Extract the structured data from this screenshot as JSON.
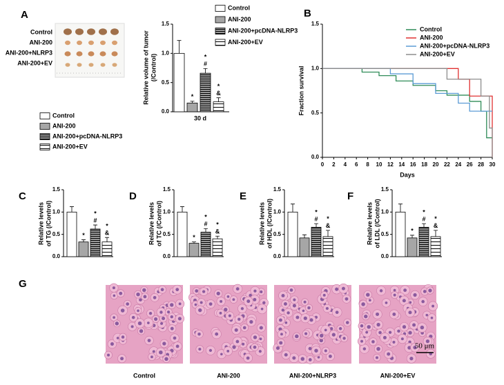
{
  "photo": {
    "label": "A",
    "rows": [
      "Control",
      "ANI-200",
      "ANI-200+NLRP3",
      "ANI-200+EV"
    ]
  },
  "chart_data": [
    {
      "type": "bar",
      "ylabel": [
        "Relative volume of tumor",
        "(/Control)"
      ],
      "categories": [
        "30 d"
      ],
      "ylim": [
        0,
        1.5
      ],
      "yticks": [
        {
          "value": 0,
          "label": "0.0"
        },
        0.5,
        {
          "value": 1,
          "label": "1.0"
        },
        1.5
      ],
      "series": [
        {
          "name": "Control",
          "color": "#ffffff",
          "values": [
            1.0
          ],
          "errors": [
            0.22
          ],
          "annotations": [
            []
          ]
        },
        {
          "name": "ANI-200",
          "color": "#a6a6a6",
          "values": [
            0.15
          ],
          "errors": [
            0.03
          ],
          "annotations": [
            [
              "*"
            ]
          ]
        },
        {
          "name": "ANI-200+pcDNA-NLRP3",
          "color": "#9a9a9a",
          "hatch": "dense",
          "values": [
            0.66
          ],
          "errors": [
            0.08
          ],
          "annotations": [
            [
              "*",
              "#"
            ]
          ]
        },
        {
          "name": "ANI-200+EV",
          "color": "#ffffff",
          "hatch": "wide",
          "values": [
            0.17
          ],
          "errors": [
            0.07
          ],
          "annotations": [
            [
              "*",
              "&"
            ]
          ]
        }
      ]
    },
    {
      "type": "line",
      "label": "B",
      "step": true,
      "xlabel": "Days",
      "ylabel": "Fraction survival",
      "xlim": [
        0,
        30
      ],
      "xticks": [
        0,
        2,
        4,
        6,
        8,
        10,
        12,
        14,
        16,
        18,
        20,
        22,
        24,
        26,
        28,
        30
      ],
      "ylim": [
        0,
        1.5
      ],
      "yticks": [
        {
          "value": 0,
          "label": "0.0"
        },
        0.5,
        {
          "value": 1,
          "label": "1.0"
        },
        1.5
      ],
      "series": [
        {
          "name": "Control",
          "color": "#2e8b57",
          "x": [
            0,
            7,
            10,
            13,
            16,
            20,
            22,
            26,
            28,
            29,
            30
          ],
          "values": [
            1,
            0.96,
            0.92,
            0.86,
            0.81,
            0.75,
            0.7,
            0.63,
            0.52,
            0.22,
            0.22
          ]
        },
        {
          "name": "ANI-200",
          "color": "#e03030",
          "x": [
            0,
            24,
            26,
            30
          ],
          "values": [
            1,
            0.88,
            0.69,
            0
          ]
        },
        {
          "name": "ANI-200+pcDNA-NLRP3",
          "color": "#5b9bd5",
          "x": [
            0,
            12,
            16,
            20,
            24,
            26,
            30
          ],
          "values": [
            1,
            0.94,
            0.83,
            0.72,
            0.61,
            0.52,
            0.52
          ]
        },
        {
          "name": "ANI-200+EV",
          "color": "#8c8c8c",
          "x": [
            0,
            22,
            28,
            29.5,
            30
          ],
          "values": [
            1,
            0.88,
            0.69,
            0.33,
            0
          ]
        }
      ]
    },
    {
      "type": "bar",
      "ylim": [
        0,
        1.5
      ],
      "yticks": [
        {
          "value": 0,
          "label": "0.0"
        },
        0.5,
        {
          "value": 1,
          "label": "1.0"
        },
        1.5
      ],
      "series": [
        {
          "name": "Control",
          "color": "#ffffff"
        },
        {
          "name": "ANI-200",
          "color": "#a6a6a6"
        },
        {
          "name": "ANI-200+pcDNA-NLRP3",
          "color": "#9a9a9a",
          "hatch": "dense"
        },
        {
          "name": "ANI-200+EV",
          "color": "#ffffff",
          "hatch": "wide"
        }
      ],
      "panels": [
        {
          "label": "C",
          "ylabel": [
            "Relative levels",
            "of TG (/Control)"
          ],
          "values": [
            1.0,
            0.33,
            0.62,
            0.33
          ],
          "errors": [
            0.12,
            0.05,
            0.09,
            0.1
          ],
          "annotations": [
            [],
            [
              "*"
            ],
            [
              "*",
              "#"
            ],
            [
              "*",
              "&"
            ]
          ]
        },
        {
          "label": "D",
          "ylabel": [
            "Relative levels",
            "of TC (/Control)"
          ],
          "values": [
            1.0,
            0.3,
            0.55,
            0.4
          ],
          "errors": [
            0.12,
            0.03,
            0.08,
            0.06
          ],
          "annotations": [
            [],
            [
              "*"
            ],
            [
              "*",
              "#"
            ],
            [
              "*",
              "&"
            ]
          ]
        },
        {
          "label": "E",
          "ylabel": [
            "Relative levels",
            "of HDL (/Control)"
          ],
          "values": [
            1.0,
            0.42,
            0.66,
            0.45
          ],
          "errors": [
            0.18,
            0.07,
            0.08,
            0.14
          ],
          "annotations": [
            [],
            [],
            [
              "*",
              "#"
            ],
            [
              "*",
              "&"
            ]
          ]
        },
        {
          "label": "F",
          "ylabel": [
            "Relative levels",
            "of LDL (/Control)"
          ],
          "values": [
            1.0,
            0.42,
            0.66,
            0.45
          ],
          "errors": [
            0.18,
            0.06,
            0.08,
            0.14
          ],
          "annotations": [
            [],
            [
              "*"
            ],
            [
              "*",
              "#"
            ],
            [
              "*",
              "&"
            ]
          ]
        }
      ]
    }
  ],
  "histology": {
    "label": "G",
    "panels": [
      "Control",
      "ANI-200",
      "ANI-200+NLRP3",
      "ANI-200+EV"
    ],
    "scale_bar": "50 μm"
  }
}
